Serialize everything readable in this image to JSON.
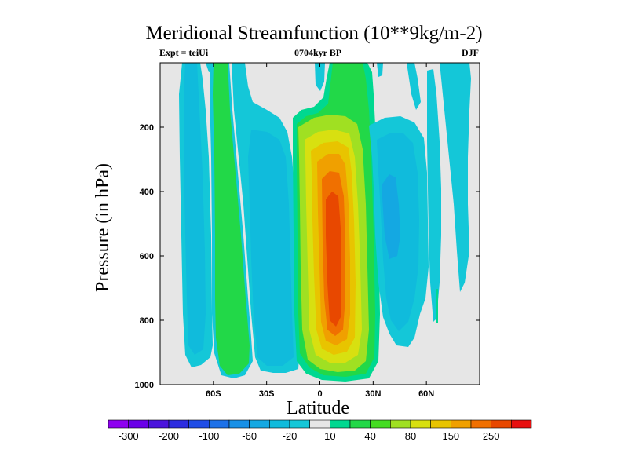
{
  "chart_data": {
    "type": "heatmap",
    "title": "Meridional Streamfunction (10**9kg/m-2)",
    "left_label": "Expt = teiUi",
    "center_label": "0704kyr BP",
    "right_label": "DJF",
    "xlabel": "Latitude",
    "ylabel": "Pressure (in hPa)",
    "xlim": [
      -90,
      90
    ],
    "ylim": [
      0,
      1000
    ],
    "x_ticks": [
      {
        "value": -60,
        "label": "60S"
      },
      {
        "value": -30,
        "label": "30S"
      },
      {
        "value": 0,
        "label": "0"
      },
      {
        "value": 30,
        "label": "30N"
      },
      {
        "value": 60,
        "label": "60N"
      }
    ],
    "y_ticks": [
      {
        "value": 200,
        "label": "200"
      },
      {
        "value": 400,
        "label": "400"
      },
      {
        "value": 600,
        "label": "600"
      },
      {
        "value": 800,
        "label": "800"
      },
      {
        "value": 1000,
        "label": "1000"
      }
    ],
    "colorbar": {
      "levels": [
        -300,
        -250,
        -200,
        -150,
        -100,
        -80,
        -60,
        -40,
        -20,
        -10,
        10,
        20,
        40,
        60,
        80,
        100,
        150,
        200,
        250,
        300
      ],
      "labels": [
        "-300",
        "-200",
        "-100",
        "-60",
        "-20",
        "10",
        "40",
        "80",
        "150",
        "250"
      ],
      "label_levels": [
        -300,
        -200,
        -100,
        -60,
        -20,
        10,
        40,
        80,
        150,
        250
      ],
      "colors": [
        "#8e00f0",
        "#6a00e8",
        "#4b14dc",
        "#2c2ce0",
        "#1f4de6",
        "#1d71e8",
        "#1890e6",
        "#14a8e2",
        "#10bbdc",
        "#14c7d8",
        "#e6e6e6",
        "#00d890",
        "#22d848",
        "#44dc22",
        "#a0e022",
        "#d8e010",
        "#e8c400",
        "#f0a000",
        "#f07000",
        "#e84800",
        "#e81010"
      ]
    },
    "field": {
      "description_levels": "contour bands of streamfunction vs latitude and pressure",
      "cells": [
        {
          "name": "southern-high-latitude-cell",
          "center_lat": -72,
          "band": "-20 to -10",
          "min_band": "-40 to -20"
        },
        {
          "name": "southern-ferrel-cell",
          "center_lat": -52,
          "band": "10 to 40"
        },
        {
          "name": "southern-hadley-cell",
          "center_lat": -27,
          "band": "-40 to -20"
        },
        {
          "name": "winter-hadley-cell",
          "center_lat": 8,
          "max_band": "200 to 250",
          "core_pressure": 500
        },
        {
          "name": "northern-midlatitude-cell",
          "center_lat": 48,
          "band": "-40 to -20"
        }
      ]
    }
  }
}
